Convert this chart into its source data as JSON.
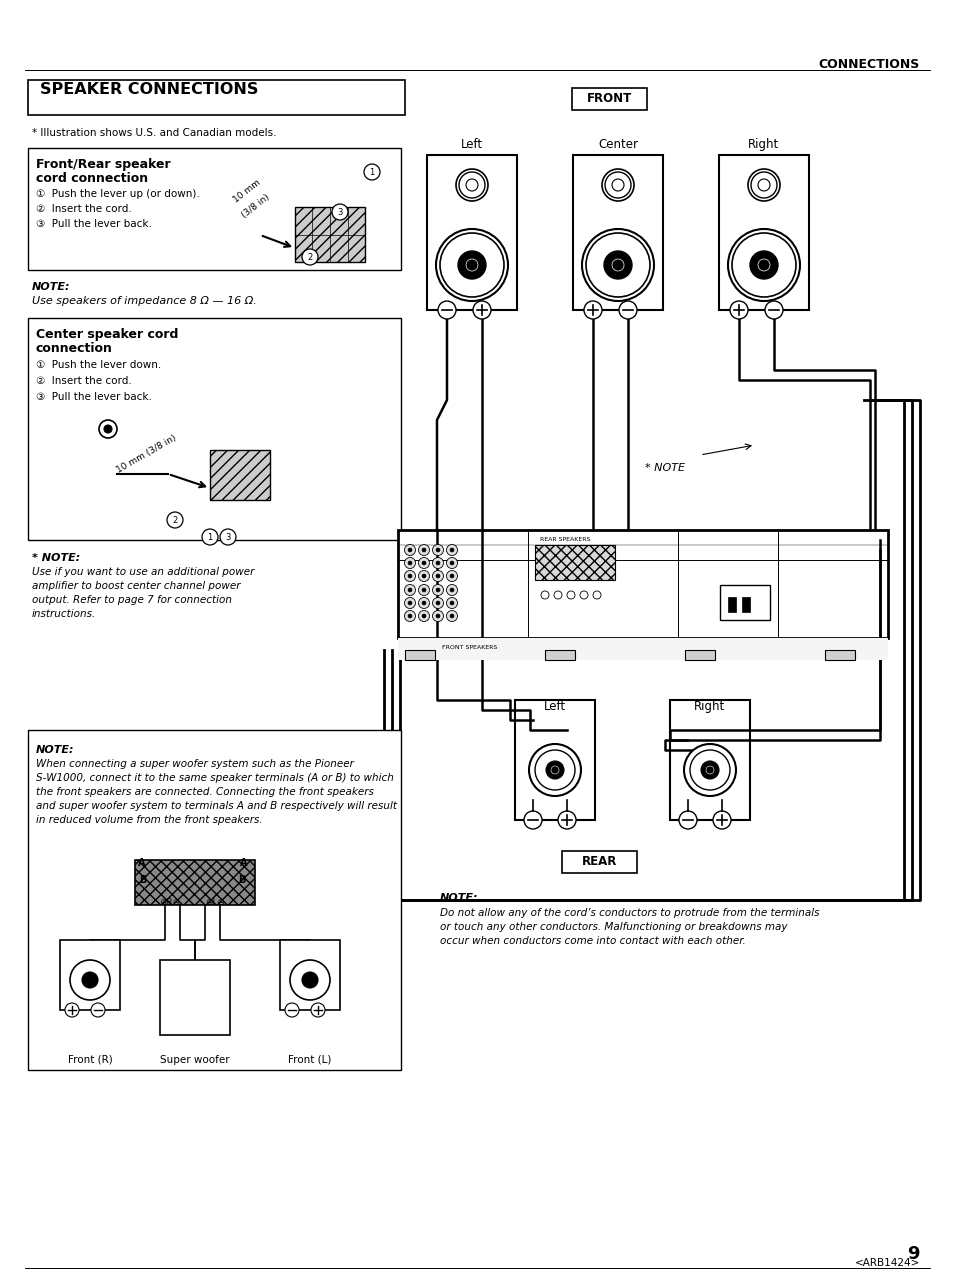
{
  "page_title": "CONNECTIONS",
  "section_title": "SPEAKER CONNECTIONS",
  "illustration_note": "* Illustration shows U.S. and Canadian models.",
  "front_label": "FRONT",
  "rear_label": "REAR",
  "front_speaker_labels": [
    "Left",
    "Center",
    "Right"
  ],
  "rear_speaker_labels": [
    "Left",
    "Right"
  ],
  "box1_title_line1": "Front/Rear speaker",
  "box1_title_line2": "cord connection",
  "box1_steps": [
    "①  Push the lever up (or down).",
    "②  Insert the cord.",
    "③  Pull the lever back."
  ],
  "note1_title": "NOTE:",
  "note1_text": "Use speakers of impedance 8 Ω — 16 Ω.",
  "box2_title_line1": "Center speaker cord",
  "box2_title_line2": "connection",
  "box2_steps": [
    "①  Push the lever down.",
    "②  Insert the cord.",
    "③  Pull the lever back."
  ],
  "note2_label": "* NOTE",
  "note3_title": "* NOTE:",
  "note3_lines": [
    "Use if you want to use an additional power",
    "amplifier to boost center channel power",
    "output. Refer to page 7 for connection",
    "instructions."
  ],
  "note4_title": "NOTE:",
  "note4_lines": [
    "When connecting a super woofer system such as the Pioneer",
    "S-W1000, connect it to the same speaker terminals (A or B) to which",
    "the front speakers are connected. Connecting the front speakers",
    "and super woofer system to terminals A and B respectively will result",
    "in reduced volume from the front speakers."
  ],
  "bottom_labels": [
    "Front (R)",
    "Super woofer",
    "Front (L)"
  ],
  "note5_title": "NOTE:",
  "note5_lines": [
    "Do not allow any of the cord’s conductors to protrude from the terminals",
    "or touch any other conductors. Malfunctioning or breakdowns may",
    "occur when conductors come into contact with each other."
  ],
  "page_number": "9",
  "page_code": "<ARB1424>",
  "bg_color": "#ffffff",
  "text_color": "#000000"
}
